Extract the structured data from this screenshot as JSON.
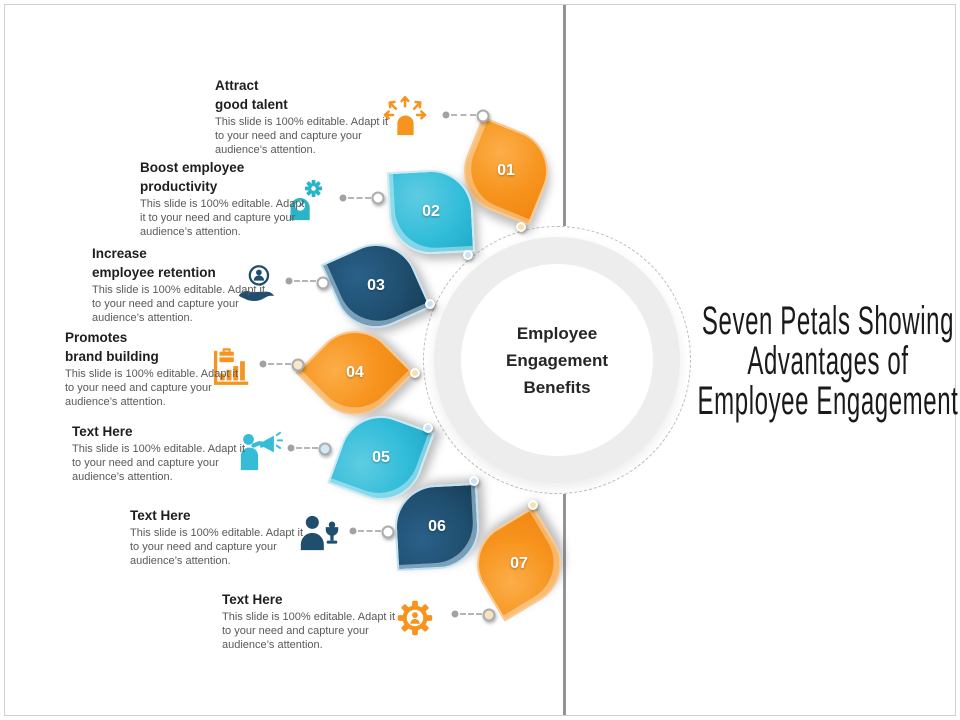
{
  "slide": {
    "title_lines": [
      "Seven Petals Showing",
      "Advantages of",
      "Employee Engagement"
    ],
    "center_circle": {
      "lines": [
        "Employee",
        "Engagement",
        "Benefits"
      ]
    },
    "items": [
      {
        "number": "01",
        "color": "orange",
        "icon": "head-arrows-icon",
        "title_lines": [
          "Attract",
          "good talent"
        ],
        "desc_lines": [
          "This slide is 100% editable. Adapt it",
          "to your need and capture your",
          "audience’s attention."
        ]
      },
      {
        "number": "02",
        "color": "cyan",
        "icon": "head-gear-icon",
        "title_lines": [
          "Boost employee",
          "productivity"
        ],
        "desc_lines": [
          "This slide is 100% editable. Adapt",
          "it to your need and capture your",
          "audience’s attention."
        ]
      },
      {
        "number": "03",
        "color": "navy",
        "icon": "hand-person-icon",
        "title_lines": [
          "Increase",
          "employee retention"
        ],
        "desc_lines": [
          "This slide is 100% editable. Adapt it",
          "to your need and capture your",
          "audience’s attention."
        ]
      },
      {
        "number": "04",
        "color": "orange",
        "icon": "briefcase-chart-icon",
        "title_lines": [
          "Promotes",
          "brand building"
        ],
        "desc_lines": [
          "This slide is 100% editable. Adapt it",
          "to your need and capture your",
          "audience’s attention."
        ]
      },
      {
        "number": "05",
        "color": "cyan",
        "icon": "megaphone-person-icon",
        "title_lines": [
          "Text Here"
        ],
        "desc_lines": [
          "This slide is 100% editable. Adapt it",
          "to your need and capture your",
          "audience’s attention."
        ]
      },
      {
        "number": "06",
        "color": "navy",
        "icon": "person-trophy-icon",
        "title_lines": [
          "Text Here"
        ],
        "desc_lines": [
          "This slide is 100% editable. Adapt it",
          "to your need and capture your",
          "audience’s attention."
        ]
      },
      {
        "number": "07",
        "color": "orange",
        "icon": "gear-person-icon",
        "title_lines": [
          "Text Here"
        ],
        "desc_lines": [
          "This slide is 100% editable. Adapt it",
          "to your need and capture your",
          "audience’s attention."
        ]
      }
    ],
    "colors": {
      "orange": "#F7941E",
      "cyan": "#30BCD9",
      "navy": "#1F4E6E",
      "teal_icon": "#2BB3C8",
      "cyan_icon": "#35BDD8",
      "tail_cream": "#F8E0AC",
      "tail_blue": "#C6E4F3",
      "tip_white": "#FFFFFF",
      "tip_cream": "#F5E3BC",
      "tip_blue": "#CDEAF6",
      "divider_gray": "#949494",
      "dash_gray": "#B5B5B5",
      "title_text": "#1A1A1A",
      "heading_text": "#1E1E1E",
      "body_text": "#595959",
      "ring_gray": "#EDEDED"
    },
    "icon_colors": {
      "head-arrows-icon": "#F7941E",
      "head-gear-icon": "#2BB3C8",
      "hand-person-icon": "#1F4E6E",
      "briefcase-chart-icon": "#F7941E",
      "megaphone-person-icon": "#35BDD8",
      "person-trophy-icon": "#1F4E6E",
      "gear-person-icon": "#F7941E"
    }
  }
}
